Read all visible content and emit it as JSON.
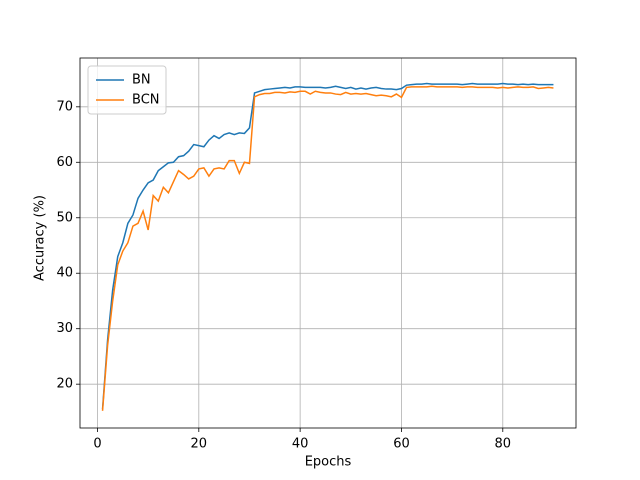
{
  "chart_data": {
    "type": "line",
    "xlabel": "Epochs",
    "ylabel": "Accuracy (%)",
    "x": [
      1,
      2,
      3,
      4,
      5,
      6,
      7,
      8,
      9,
      10,
      11,
      12,
      13,
      14,
      15,
      16,
      17,
      18,
      19,
      20,
      21,
      22,
      23,
      24,
      25,
      26,
      27,
      28,
      29,
      30,
      31,
      32,
      33,
      34,
      35,
      36,
      37,
      38,
      39,
      40,
      41,
      42,
      43,
      44,
      45,
      46,
      47,
      48,
      49,
      50,
      51,
      52,
      53,
      54,
      55,
      56,
      57,
      58,
      59,
      60,
      61,
      62,
      63,
      64,
      65,
      66,
      67,
      68,
      69,
      70,
      71,
      72,
      73,
      74,
      75,
      76,
      77,
      78,
      79,
      80,
      81,
      82,
      83,
      84,
      85,
      86,
      87,
      88,
      89,
      90
    ],
    "series": [
      {
        "name": "BN",
        "color": "#1f77b4",
        "values": [
          15.5,
          28,
          37,
          43,
          45.5,
          49,
          50.5,
          53.5,
          55,
          56.3,
          56.8,
          58.5,
          59.2,
          59.9,
          60,
          61,
          61.2,
          62,
          63.2,
          63,
          62.8,
          64,
          64.8,
          64.3,
          65,
          65.3,
          65,
          65.3,
          65.2,
          66.2,
          72.5,
          72.8,
          73.1,
          73.2,
          73.3,
          73.4,
          73.5,
          73.4,
          73.6,
          73.6,
          73.5,
          73.5,
          73.5,
          73.5,
          73.4,
          73.5,
          73.7,
          73.5,
          73.3,
          73.5,
          73.2,
          73.4,
          73.2,
          73.4,
          73.5,
          73.3,
          73.2,
          73.2,
          73.1,
          73.3,
          73.9,
          74.0,
          74.1,
          74.1,
          74.2,
          74.1,
          74.1,
          74.1,
          74.1,
          74.1,
          74.1,
          74.0,
          74.1,
          74.2,
          74.1,
          74.1,
          74.1,
          74.1,
          74.1,
          74.2,
          74.1,
          74.1,
          74.0,
          74.1,
          74.0,
          74.1,
          74.0,
          74.0,
          74.0,
          74.0
        ]
      },
      {
        "name": "BCN",
        "color": "#ff7f0e",
        "values": [
          15.2,
          27,
          35,
          41.5,
          44,
          45.5,
          48.5,
          49,
          51.2,
          47.8,
          54,
          53,
          55.5,
          54.5,
          56.5,
          58.5,
          57.8,
          57,
          57.5,
          58.8,
          59,
          57.5,
          58.8,
          59,
          58.8,
          60.3,
          60.3,
          58,
          60,
          59.8,
          71.8,
          72.2,
          72.4,
          72.4,
          72.6,
          72.6,
          72.5,
          72.7,
          72.6,
          72.8,
          72.8,
          72.3,
          72.8,
          72.6,
          72.5,
          72.5,
          72.3,
          72.2,
          72.6,
          72.3,
          72.4,
          72.3,
          72.4,
          72.2,
          72.0,
          72.1,
          72.0,
          71.8,
          72.3,
          71.7,
          73.5,
          73.6,
          73.6,
          73.6,
          73.6,
          73.7,
          73.6,
          73.6,
          73.6,
          73.6,
          73.6,
          73.5,
          73.6,
          73.6,
          73.5,
          73.5,
          73.5,
          73.5,
          73.4,
          73.5,
          73.4,
          73.5,
          73.6,
          73.5,
          73.5,
          73.6,
          73.3,
          73.4,
          73.5,
          73.4
        ]
      }
    ],
    "xlim": [
      -3.45,
      94.45
    ],
    "ylim": [
      12.1,
      78.8
    ],
    "xticks": [
      0,
      20,
      40,
      60,
      80
    ],
    "yticks": [
      20,
      30,
      40,
      50,
      60,
      70
    ],
    "grid": true,
    "legend": "upper left"
  }
}
